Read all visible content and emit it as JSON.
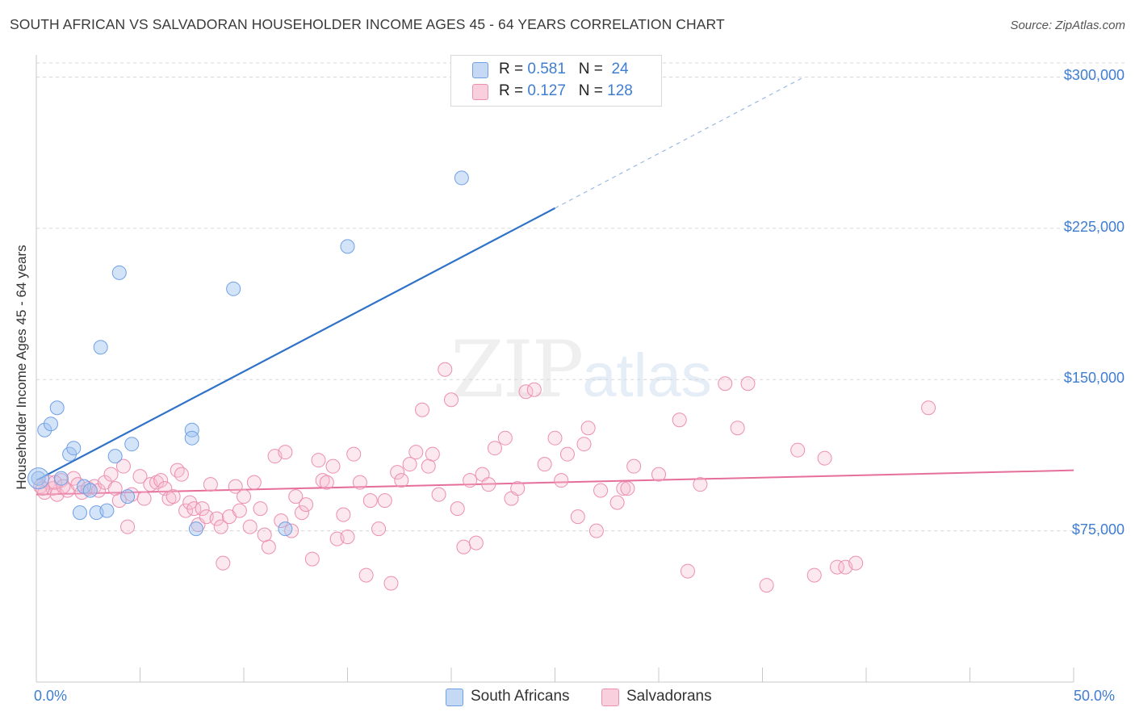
{
  "title": "SOUTH AFRICAN VS SALVADORAN HOUSEHOLDER INCOME AGES 45 - 64 YEARS CORRELATION CHART",
  "source": "Source: ZipAtlas.com",
  "watermark": {
    "zip": "ZIP",
    "atlas": "atlas"
  },
  "legend": {
    "rows": [
      {
        "r_label": "R =",
        "r_value": "0.581",
        "n_label": "N =",
        "n_value": "24"
      },
      {
        "r_label": "R =",
        "r_value": "0.127",
        "n_label": "N =",
        "n_value": "128"
      }
    ]
  },
  "chart_data": {
    "type": "scatter",
    "title": "SOUTH AFRICAN VS SALVADORAN HOUSEHOLDER INCOME AGES 45 - 64 YEARS CORRELATION CHART",
    "xlabel": "",
    "ylabel": "Householder Income Ages 45 - 64 years",
    "xlim": [
      0,
      50
    ],
    "ylim": [
      0,
      307000
    ],
    "x_tick_labels": [
      "0.0%",
      "50.0%"
    ],
    "y_ticks": [
      75000,
      150000,
      225000,
      300000
    ],
    "y_tick_labels": [
      "$75,000",
      "$150,000",
      "$225,000",
      "$300,000"
    ],
    "grid": true,
    "legend_position": "top-center",
    "colors": {
      "south_africans": "#6fa0e6",
      "salvadorans": "#ec8fb0",
      "blue_line": "#3072c8",
      "pink_line": "#e56f9a"
    },
    "series": [
      {
        "name": "South Africans",
        "R": 0.581,
        "N": 24,
        "trend": {
          "x": [
            0,
            25
          ],
          "y": [
            100000,
            235000
          ]
        },
        "trend_extension": {
          "x": [
            25,
            37
          ],
          "y": [
            235000,
            300000
          ]
        },
        "points": [
          [
            0.1,
            101000
          ],
          [
            0.4,
            125000
          ],
          [
            0.7,
            128000
          ],
          [
            1.0,
            136000
          ],
          [
            1.2,
            101000
          ],
          [
            1.6,
            113000
          ],
          [
            1.8,
            116000
          ],
          [
            2.1,
            84000
          ],
          [
            2.3,
            97000
          ],
          [
            2.6,
            95000
          ],
          [
            2.9,
            84000
          ],
          [
            3.4,
            85000
          ],
          [
            3.8,
            112000
          ],
          [
            4.0,
            203000
          ],
          [
            4.4,
            92000
          ],
          [
            4.6,
            118000
          ],
          [
            3.1,
            166000
          ],
          [
            7.5,
            125000
          ],
          [
            7.5,
            121000
          ],
          [
            7.7,
            76000
          ],
          [
            9.5,
            195000
          ],
          [
            12.0,
            76000
          ],
          [
            15.0,
            216000
          ],
          [
            20.5,
            250000
          ]
        ]
      },
      {
        "name": "Salvadorans",
        "R": 0.127,
        "N": 128,
        "trend": {
          "x": [
            0,
            50
          ],
          "y": [
            93000,
            105000
          ]
        },
        "points": [
          [
            0.2,
            97000
          ],
          [
            0.4,
            94000
          ],
          [
            0.6,
            99000
          ],
          [
            0.8,
            96000
          ],
          [
            1.0,
            93000
          ],
          [
            1.2,
            100000
          ],
          [
            1.5,
            95000
          ],
          [
            1.8,
            101000
          ],
          [
            2.0,
            98000
          ],
          [
            2.2,
            94000
          ],
          [
            2.5,
            96000
          ],
          [
            2.8,
            97000
          ],
          [
            3.0,
            95000
          ],
          [
            3.3,
            99000
          ],
          [
            3.6,
            103000
          ],
          [
            3.8,
            96000
          ],
          [
            4.0,
            90000
          ],
          [
            4.2,
            107000
          ],
          [
            4.4,
            77000
          ],
          [
            4.6,
            93000
          ],
          [
            5.0,
            102000
          ],
          [
            5.2,
            91000
          ],
          [
            5.5,
            98000
          ],
          [
            5.8,
            99000
          ],
          [
            6.0,
            100000
          ],
          [
            6.2,
            96000
          ],
          [
            6.4,
            91000
          ],
          [
            6.6,
            92000
          ],
          [
            6.8,
            105000
          ],
          [
            7.0,
            103000
          ],
          [
            7.2,
            85000
          ],
          [
            7.4,
            89000
          ],
          [
            7.6,
            86000
          ],
          [
            7.8,
            78000
          ],
          [
            8.0,
            86000
          ],
          [
            8.2,
            82000
          ],
          [
            8.4,
            98000
          ],
          [
            8.7,
            81000
          ],
          [
            8.9,
            77000
          ],
          [
            9.0,
            59000
          ],
          [
            9.3,
            82000
          ],
          [
            9.6,
            97000
          ],
          [
            9.8,
            85000
          ],
          [
            10.0,
            92000
          ],
          [
            10.3,
            77000
          ],
          [
            10.5,
            99000
          ],
          [
            10.8,
            86000
          ],
          [
            11.0,
            73000
          ],
          [
            11.2,
            67000
          ],
          [
            11.5,
            112000
          ],
          [
            11.8,
            80000
          ],
          [
            12.0,
            114000
          ],
          [
            12.3,
            75000
          ],
          [
            12.5,
            92000
          ],
          [
            12.8,
            84000
          ],
          [
            13.0,
            88000
          ],
          [
            13.3,
            61000
          ],
          [
            13.6,
            110000
          ],
          [
            13.8,
            100000
          ],
          [
            14.0,
            99000
          ],
          [
            14.3,
            107000
          ],
          [
            14.5,
            71000
          ],
          [
            14.8,
            83000
          ],
          [
            15.0,
            72000
          ],
          [
            15.3,
            113000
          ],
          [
            15.6,
            99000
          ],
          [
            15.9,
            53000
          ],
          [
            16.1,
            90000
          ],
          [
            16.5,
            76000
          ],
          [
            16.8,
            90000
          ],
          [
            17.1,
            49000
          ],
          [
            17.4,
            104000
          ],
          [
            17.6,
            100000
          ],
          [
            18.0,
            108000
          ],
          [
            18.3,
            114000
          ],
          [
            18.6,
            135000
          ],
          [
            18.9,
            107000
          ],
          [
            19.1,
            113000
          ],
          [
            19.4,
            93000
          ],
          [
            19.7,
            155000
          ],
          [
            20.0,
            140000
          ],
          [
            20.3,
            86000
          ],
          [
            20.6,
            67000
          ],
          [
            20.9,
            100000
          ],
          [
            21.2,
            69000
          ],
          [
            21.5,
            103000
          ],
          [
            21.8,
            98000
          ],
          [
            22.1,
            116000
          ],
          [
            22.6,
            121000
          ],
          [
            22.9,
            91000
          ],
          [
            23.2,
            96000
          ],
          [
            23.6,
            144000
          ],
          [
            24.0,
            145000
          ],
          [
            24.5,
            108000
          ],
          [
            25.0,
            121000
          ],
          [
            25.3,
            100000
          ],
          [
            25.6,
            113000
          ],
          [
            26.1,
            82000
          ],
          [
            26.4,
            118000
          ],
          [
            26.6,
            126000
          ],
          [
            27.0,
            75000
          ],
          [
            27.2,
            95000
          ],
          [
            28.0,
            89000
          ],
          [
            28.3,
            96000
          ],
          [
            28.5,
            96000
          ],
          [
            28.8,
            107000
          ],
          [
            30.0,
            103000
          ],
          [
            31.0,
            130000
          ],
          [
            31.4,
            55000
          ],
          [
            32.0,
            98000
          ],
          [
            33.2,
            148000
          ],
          [
            33.8,
            126000
          ],
          [
            34.3,
            148000
          ],
          [
            35.2,
            48000
          ],
          [
            36.7,
            115000
          ],
          [
            37.5,
            53000
          ],
          [
            38.0,
            111000
          ],
          [
            38.6,
            57000
          ],
          [
            39.0,
            57000
          ],
          [
            39.5,
            59000
          ],
          [
            43.0,
            136000
          ],
          [
            0.3,
            96000
          ],
          [
            0.9,
            99000
          ],
          [
            1.3,
            97000
          ]
        ]
      }
    ]
  },
  "bottom_legend": [
    {
      "label": "South Africans"
    },
    {
      "label": "Salvadorans"
    }
  ]
}
